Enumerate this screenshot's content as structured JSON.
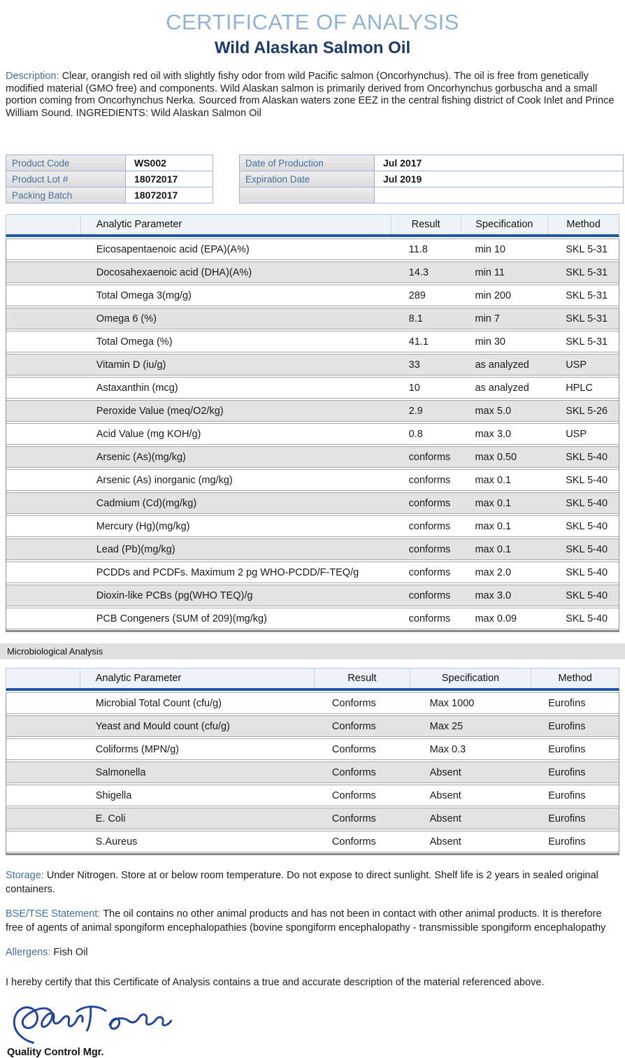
{
  "header": {
    "title": "CERTIFICATE OF ANALYSIS",
    "subtitle": "Wild Alaskan Salmon Oil"
  },
  "description": {
    "label": "Description:",
    "text": "Clear, orangish red oil with slightly fishy odor from wild Pacific salmon (Oncorhynchus). The oil is free from genetically modified material (GMO free) and components. Wild Alaskan salmon is primarily derived from Oncorhynchus gorbuscha and a small portion coming from Oncorhynchus Nerka. Sourced from Alaskan waters zone EEZ in the central fishing district of Cook Inlet and Prince William Sound. INGREDIENTS: Wild Alaskan Salmon Oil"
  },
  "product_info": {
    "left": [
      {
        "label": "Product Code",
        "value": "WS002"
      },
      {
        "label": "Product Lot #",
        "value": "18072017"
      },
      {
        "label": "Packing Batch",
        "value": "18072017"
      }
    ],
    "right": [
      {
        "label": "Date of Production",
        "value": "Jul 2017"
      },
      {
        "label": "Expiration Date",
        "value": "Jul 2019"
      },
      {
        "label": "",
        "value": ""
      }
    ]
  },
  "analysis_table": {
    "headers": [
      "Analytic Parameter",
      "Result",
      "Specification",
      "Method"
    ],
    "rows": [
      [
        "Eicosapentaenoic acid (EPA)(A%)",
        "11.8",
        "min 10",
        "SKL 5-31"
      ],
      [
        "Docosahexaenoic acid (DHA)(A%)",
        "14.3",
        "min 11",
        "SKL 5-31"
      ],
      [
        "Total Omega 3(mg/g)",
        "289",
        "min 200",
        "SKL 5-31"
      ],
      [
        "Omega 6 (%)",
        "8.1",
        "min 7",
        "SKL 5-31"
      ],
      [
        "Total Omega (%)",
        "41.1",
        "min 30",
        "SKL 5-31"
      ],
      [
        "Vitamin D (iu/g)",
        "33",
        "as analyzed",
        "USP"
      ],
      [
        "Astaxanthin (mcg)",
        "10",
        "as analyzed",
        "HPLC"
      ],
      [
        "Peroxide Value (meq/O2/kg)",
        "2.9",
        "max 5.0",
        "SKL 5-26"
      ],
      [
        "Acid Value (mg KOH/g)",
        "0.8",
        "max 3.0",
        "USP"
      ],
      [
        "Arsenic (As)(mg/kg)",
        "conforms",
        "max 0.50",
        "SKL 5-40"
      ],
      [
        "Arsenic (As) inorganic (mg/kg)",
        "conforms",
        "max 0.1",
        "SKL 5-40"
      ],
      [
        "Cadmium (Cd)(mg/kg)",
        "conforms",
        "max 0.1",
        "SKL 5-40"
      ],
      [
        "Mercury (Hg)(mg/kg)",
        "conforms",
        "max 0.1",
        "SKL 5-40"
      ],
      [
        "Lead (Pb)(mg/kg)",
        "conforms",
        "max 0.1",
        "SKL 5-40"
      ],
      [
        "PCDDs and PCDFs. Maximum 2 pg WHO-PCDD/F-TEQ/g",
        "conforms",
        "max 2.0",
        "SKL 5-40"
      ],
      [
        "Dioxin-like PCBs (pg(WHO TEQ)/g",
        "conforms",
        "max 3.0",
        "SKL 5-40"
      ],
      [
        "PCB Congeners (SUM of 209)(mg/kg)",
        "conforms",
        "max 0.09",
        "SKL 5-40"
      ]
    ]
  },
  "micro_section": {
    "label": "Microbiological Analysis"
  },
  "micro_table": {
    "headers": [
      "Analytic Parameter",
      "Result",
      "Specification",
      "Method"
    ],
    "rows": [
      [
        "Microbial Total Count (cfu/g)",
        "Conforms",
        "Max 1000",
        "Eurofins"
      ],
      [
        "Yeast and Mould count (cfu/g)",
        "Conforms",
        "Max 25",
        "Eurofins"
      ],
      [
        "Coliforms (MPN/g)",
        "Conforms",
        "Max 0.3",
        "Eurofins"
      ],
      [
        "Salmonella",
        "Conforms",
        "Absent",
        "Eurofins"
      ],
      [
        "Shigella",
        "Conforms",
        "Absent",
        "Eurofins"
      ],
      [
        "E. Coli",
        "Conforms",
        "Absent",
        "Eurofins"
      ],
      [
        "S.Aureus",
        "Conforms",
        "Absent",
        "Eurofins"
      ]
    ]
  },
  "storage": {
    "label": "Storage:",
    "text": "Under Nitrogen. Store at or below room temperature. Do not expose to direct sunlight. Shelf life is 2 years in sealed original containers."
  },
  "bse_tse": {
    "label": "BSE/TSE Statement:",
    "text": "The oil contains no other animal products and has not been in contact with other animal products. It is therefore free of agents of animal spongiform encephalopathies (bovine spongiform encephalopathy -  transmissible spongiform encephalopathy"
  },
  "allergens": {
    "label": "Allergens:",
    "text": "Fish Oil"
  },
  "certification": "I hereby certify that this Certificate of Analysis contains a true and accurate description of the material referenced above.",
  "signature": {
    "role": "Quality Control Mgr."
  },
  "colors": {
    "title_blue": "#92b1d6",
    "subtitle_navy": "#1b3a6b",
    "label_blue": "#44709d",
    "header_rule_blue": "#1e57a8",
    "row_gray": "#e3e3e3",
    "header_bg": "#eef2f9",
    "signature_ink": "#24439b"
  }
}
